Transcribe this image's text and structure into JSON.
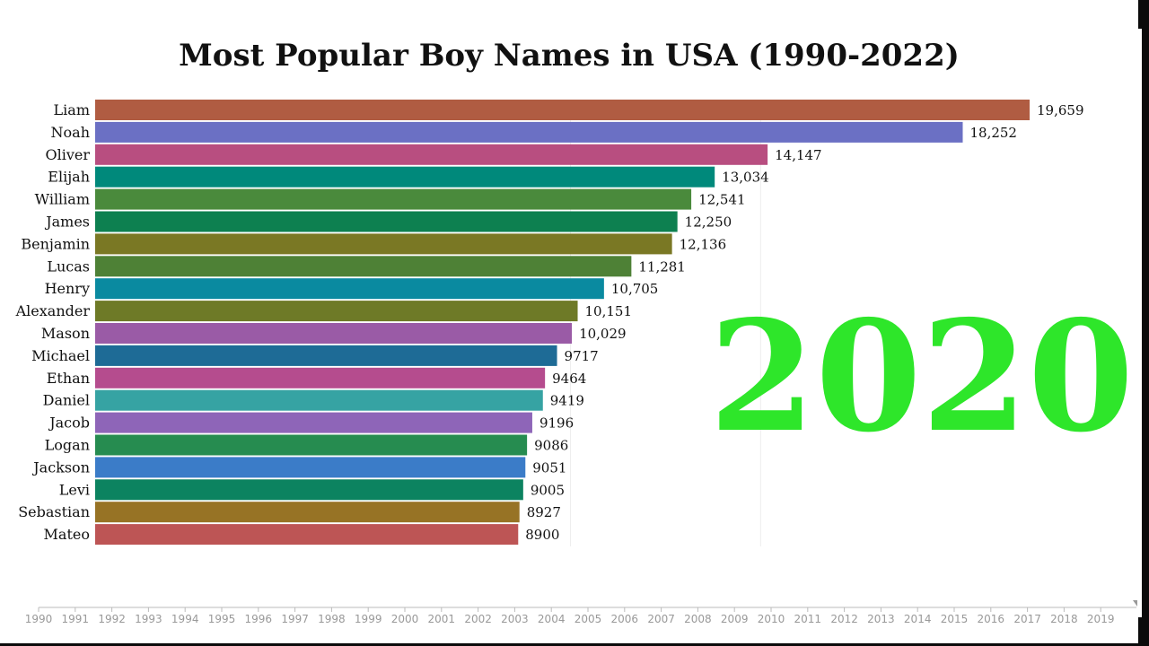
{
  "title": "Most Popular Boy Names in USA (1990-2022)",
  "current_year": "2020",
  "colors": {
    "year_label": "#2ee62a"
  },
  "chart_data": {
    "type": "bar",
    "orientation": "horizontal",
    "title": "Most Popular Boy Names in USA (1990-2022)",
    "categories": [
      "Liam",
      "Noah",
      "Oliver",
      "Elijah",
      "William",
      "James",
      "Benjamin",
      "Lucas",
      "Henry",
      "Alexander",
      "Mason",
      "Michael",
      "Ethan",
      "Daniel",
      "Jacob",
      "Logan",
      "Jackson",
      "Levi",
      "Sebastian",
      "Mateo"
    ],
    "values": [
      19659,
      18252,
      14147,
      13034,
      12541,
      12250,
      12136,
      11281,
      10705,
      10151,
      10029,
      9717,
      9464,
      9419,
      9196,
      9086,
      9051,
      9005,
      8927,
      8900
    ],
    "value_labels": [
      "19,659",
      "18,252",
      "14,147",
      "13,034",
      "12,541",
      "12,250",
      "12,136",
      "11,281",
      "10,705",
      "10,151",
      "10,029",
      "9717",
      "9464",
      "9419",
      "9196",
      "9086",
      "9051",
      "9005",
      "8927",
      "8900"
    ],
    "colors": [
      "#b05c42",
      "#6b70c4",
      "#b84e80",
      "#00897b",
      "#4a8a3c",
      "#0d8050",
      "#7a7824",
      "#4e8136",
      "#0a8aa0",
      "#6e7a27",
      "#9a5ba6",
      "#1e6b96",
      "#b54c8e",
      "#36a3a3",
      "#8e65b8",
      "#268c50",
      "#3b7cc8",
      "#0c8360",
      "#977325",
      "#bd5555"
    ],
    "xlim": [
      0,
      19659
    ],
    "gridlines": [
      10000,
      14000
    ],
    "timeline": {
      "years": [
        "1990",
        "1991",
        "1992",
        "1993",
        "1994",
        "1995",
        "1996",
        "1997",
        "1998",
        "1999",
        "2000",
        "2001",
        "2002",
        "2003",
        "2004",
        "2005",
        "2006",
        "2007",
        "2008",
        "2009",
        "2010",
        "2011",
        "2012",
        "2013",
        "2014",
        "2015",
        "2016",
        "2017",
        "2018",
        "2019"
      ]
    }
  }
}
